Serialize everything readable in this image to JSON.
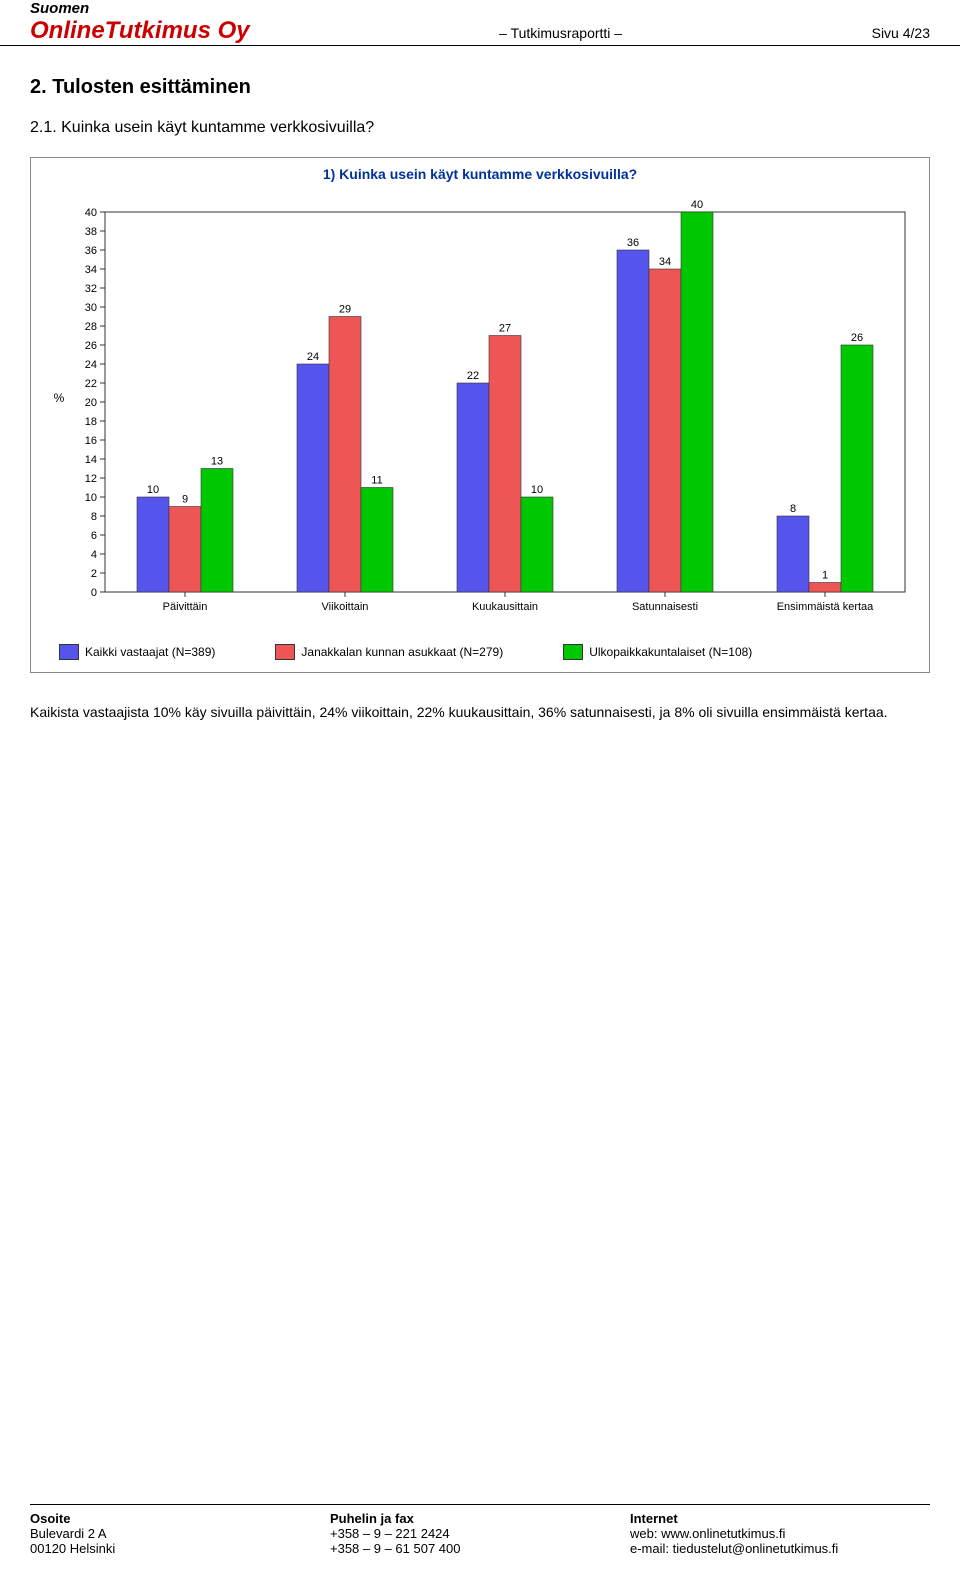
{
  "header": {
    "top": "Suomen",
    "company": "OnlineTutkimus Oy",
    "center": "– Tutkimusraportti –",
    "right": "Sivu 4/23"
  },
  "section_title": "2. Tulosten esittäminen",
  "subsection_title": "2.1. Kuinka usein käyt kuntamme verkkosivuilla?",
  "chart": {
    "type": "bar",
    "title": "1) Kuinka usein käyt kuntamme verkkosivuilla?",
    "title_color": "#003399",
    "title_fontsize": 14,
    "background_color": "#ffffff",
    "border_color": "#888888",
    "y_label": "%",
    "y_ticks": [
      0,
      2,
      4,
      6,
      8,
      10,
      12,
      14,
      16,
      18,
      20,
      22,
      24,
      26,
      28,
      30,
      32,
      34,
      36,
      38,
      40
    ],
    "ylim": [
      0,
      40
    ],
    "categories": [
      "Päivittäin",
      "Viikoittain",
      "Kuukausittain",
      "Satunnaisesti",
      "Ensimmäistä kertaa"
    ],
    "series": [
      {
        "name": "Kaikki vastaajat (N=389)",
        "color": "#5555ee",
        "values": [
          10,
          24,
          22,
          36,
          8
        ]
      },
      {
        "name": "Janakkalan kunnan asukkaat (N=279)",
        "color": "#ee5555",
        "values": [
          9,
          29,
          27,
          34,
          1
        ]
      },
      {
        "name": "Ulkopaikkakuntalaiset (N=108)",
        "color": "#00c800",
        "values": [
          13,
          11,
          10,
          40,
          26
        ]
      }
    ],
    "label_font": "Arial",
    "tick_fontsize": 11,
    "value_label_fontsize": 11,
    "bar_border": "#333333"
  },
  "body_text": "Kaikista vastaajista 10% käy sivuilla päivittäin, 24% viikoittain, 22% kuukausittain, 36% satunnaisesti, ja 8% oli sivuilla ensimmäistä kertaa.",
  "footer": {
    "col1": {
      "head": "Osoite",
      "l1": "Bulevardi 2 A",
      "l2": "00120 Helsinki"
    },
    "col2": {
      "head": "Puhelin ja fax",
      "l1": "+358 – 9 – 221 2424",
      "l2": "+358 – 9 – 61 507 400"
    },
    "col3": {
      "head": "Internet",
      "l1": "web: www.onlinetutkimus.fi",
      "l2": "e-mail: tiedustelut@onlinetutkimus.fi"
    }
  }
}
